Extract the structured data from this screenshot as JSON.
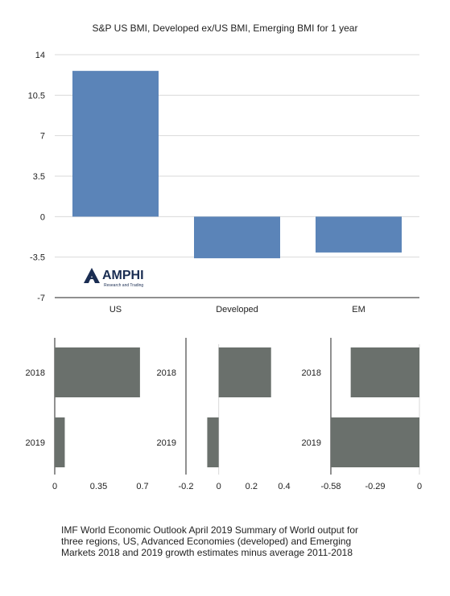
{
  "title": "S&P US BMI, Developed ex/US BMI, Emerging BMI for 1 year",
  "logo": {
    "name": "AMPHI",
    "tagline": "Research and Trading"
  },
  "caption": [
    "IMF World Economic Outlook April 2019 Summary of World output for",
    "three regions, US, Advanced Economies (developed) and Emerging",
    "Markets 2018 and 2019 growth estimates minus average 2011-2018"
  ],
  "colors": {
    "main_bar": "#5b84b8",
    "small_bar": "#6a706c",
    "grid": "#d9d9d9",
    "axis": "#222222"
  },
  "chart_data": [
    {
      "type": "bar",
      "title": "S&P US BMI, Developed ex/US BMI, Emerging BMI for 1 year",
      "categories": [
        "US",
        "Developed",
        "EM"
      ],
      "values": [
        12.6,
        -3.6,
        -3.1
      ],
      "yticks": [
        "14",
        "10.5",
        "7",
        "3.5",
        "0",
        "-3.5",
        "-7"
      ],
      "ylim": [
        -7,
        14
      ],
      "grid": true
    },
    {
      "type": "bar",
      "orientation": "horizontal",
      "categories": [
        "2018",
        "2019"
      ],
      "values": [
        0.68,
        0.08
      ],
      "xticks": [
        "0",
        "0.35",
        "0.7"
      ],
      "xlim": [
        0,
        0.7
      ]
    },
    {
      "type": "bar",
      "orientation": "horizontal",
      "categories": [
        "2018",
        "2019"
      ],
      "values": [
        0.32,
        -0.07
      ],
      "xticks": [
        "-0.2",
        "0",
        "0.2",
        "0.4"
      ],
      "xlim": [
        -0.2,
        0.4
      ]
    },
    {
      "type": "bar",
      "orientation": "horizontal",
      "categories": [
        "2018",
        "2019"
      ],
      "values": [
        -0.45,
        -0.58
      ],
      "xticks": [
        "-0.58",
        "-0.29",
        "0"
      ],
      "xlim": [
        -0.58,
        0
      ]
    }
  ]
}
